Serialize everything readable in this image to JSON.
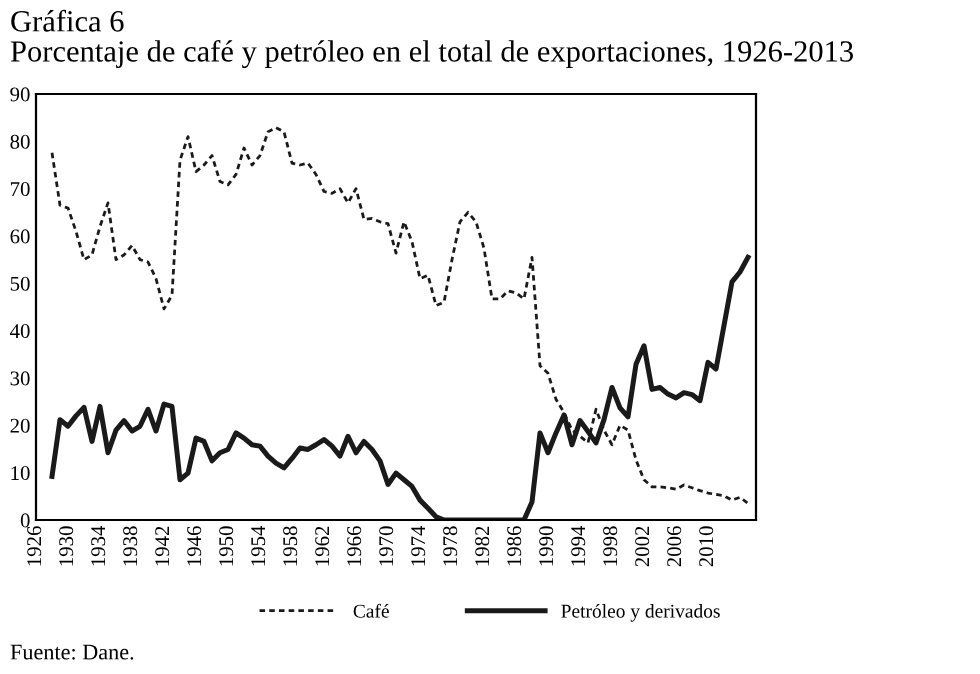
{
  "chart_data": {
    "type": "line",
    "title": "Gráfica 6",
    "subtitle": "Porcentaje de café y petróleo en el total de exportaciones, 1926-2013",
    "x": [
      1928,
      1929,
      1930,
      1931,
      1932,
      1933,
      1934,
      1935,
      1936,
      1937,
      1938,
      1939,
      1940,
      1941,
      1942,
      1943,
      1944,
      1945,
      1946,
      1947,
      1948,
      1949,
      1950,
      1951,
      1952,
      1953,
      1954,
      1955,
      1956,
      1957,
      1958,
      1959,
      1960,
      1961,
      1962,
      1963,
      1964,
      1965,
      1966,
      1967,
      1968,
      1969,
      1970,
      1971,
      1972,
      1973,
      1974,
      1975,
      1976,
      1977,
      1978,
      1979,
      1980,
      1981,
      1982,
      1983,
      1984,
      1985,
      1986,
      1987,
      1988,
      1989,
      1990,
      1991,
      1992,
      1993,
      1994,
      1995,
      1996,
      1997,
      1998,
      1999,
      2000,
      2001,
      2002,
      2003,
      2004,
      2005,
      2006,
      2007,
      2008,
      2009,
      2010,
      2011,
      2012,
      2013,
      2014,
      2015
    ],
    "series": [
      {
        "name": "Café",
        "color": "#1a1a1a",
        "line_style": "dotted",
        "values": [
          77.6,
          66.5,
          65.9,
          61,
          55,
          56,
          62,
          67,
          55,
          56,
          58,
          55,
          54.5,
          51,
          44.6,
          47.5,
          76,
          81,
          73.6,
          75,
          77,
          71.5,
          70.8,
          73,
          78.6,
          75,
          77,
          82,
          82.9,
          82,
          75.4,
          75,
          75.4,
          73,
          69.4,
          69,
          70,
          67,
          70,
          63.5,
          63.7,
          63,
          62.6,
          56.4,
          63,
          58.8,
          51,
          51.7,
          45.3,
          46,
          55,
          63,
          65,
          63,
          57.4,
          46.7,
          46.7,
          48.4,
          48,
          46.7,
          55.5,
          32.6,
          31,
          25.5,
          22.7,
          19,
          17.7,
          16.3,
          23.4,
          19,
          15.9,
          20,
          19,
          12.7,
          8.5,
          7,
          7,
          6.8,
          6.5,
          7.4,
          6.8,
          6.2,
          5.7,
          5.4,
          5.1,
          4.2,
          4.8,
          3.5
        ]
      },
      {
        "name": "Petróleo y derivados",
        "color": "#1a1a1a",
        "line_style": "solid",
        "values": [
          9.2,
          21.2,
          19.8,
          22,
          23.8,
          16.6,
          24,
          14.2,
          19,
          21,
          18.8,
          19.8,
          23.4,
          18.8,
          24.5,
          24,
          8.5,
          9.9,
          17.3,
          16.6,
          12.5,
          14.2,
          14.9,
          18.4,
          17.3,
          15.9,
          15.6,
          13.5,
          12,
          11,
          13,
          15.2,
          14.9,
          15.9,
          17,
          15.6,
          13.5,
          17.7,
          14.2,
          16.6,
          14.9,
          12.5,
          7.5,
          9.9,
          8.5,
          7.1,
          4.2,
          2.5,
          0.7,
          0,
          0,
          0,
          0,
          0,
          0,
          0,
          0,
          0,
          0,
          0,
          3.8,
          18.4,
          14.2,
          18.4,
          22.2,
          15.9,
          21,
          18.7,
          16.3,
          21.2,
          28,
          23.7,
          21.8,
          32.9,
          36.8,
          27.6,
          28,
          26.6,
          25.8,
          26.9,
          26.5,
          25.2,
          33.3,
          31.9,
          41.1,
          50.3,
          52.4,
          55.5
        ]
      }
    ],
    "xlim": [
      1926,
      2016
    ],
    "xticks": [
      1926,
      1930,
      1934,
      1938,
      1942,
      1946,
      1950,
      1954,
      1958,
      1962,
      1966,
      1970,
      1974,
      1978,
      1982,
      1986,
      1990,
      1994,
      1998,
      2002,
      2006,
      2010
    ],
    "ylim": [
      0,
      90
    ],
    "yticks": [
      0,
      10,
      20,
      30,
      40,
      50,
      60,
      70,
      80,
      90
    ],
    "grid": false,
    "legend": "bottom",
    "marker": "none",
    "annotations": [
      "Fuente: Dane."
    ]
  }
}
